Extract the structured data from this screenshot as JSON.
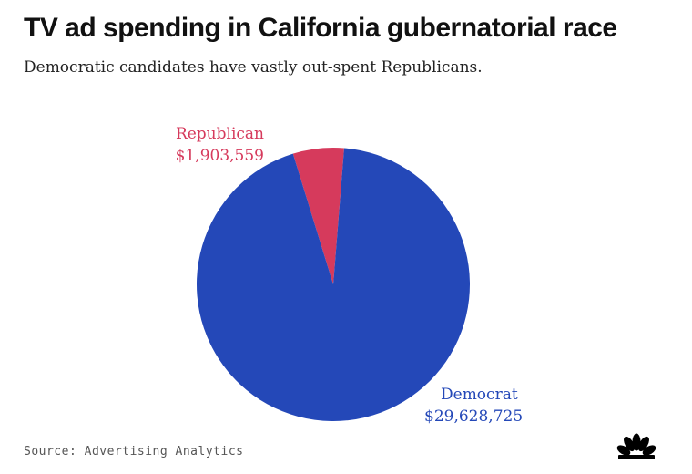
{
  "header": {
    "title": "TV ad spending in California gubernatorial race",
    "subtitle": "Democratic candidates have vastly out-spent Republicans."
  },
  "footer": {
    "source": "Source: Advertising Analytics",
    "logo_icon": "nbc-peacock-icon"
  },
  "chart_data": {
    "type": "pie",
    "title": "TV ad spending in California gubernatorial race",
    "subtitle": "Democratic candidates have vastly out-spent Republicans.",
    "slices": [
      {
        "name": "Republican",
        "value": 1903559,
        "label": "$1,903,559",
        "color": "#d63a5c"
      },
      {
        "name": "Democrat",
        "value": 29628725,
        "label": "$29,628,725",
        "color": "#2448b8"
      }
    ],
    "legend": "none"
  }
}
